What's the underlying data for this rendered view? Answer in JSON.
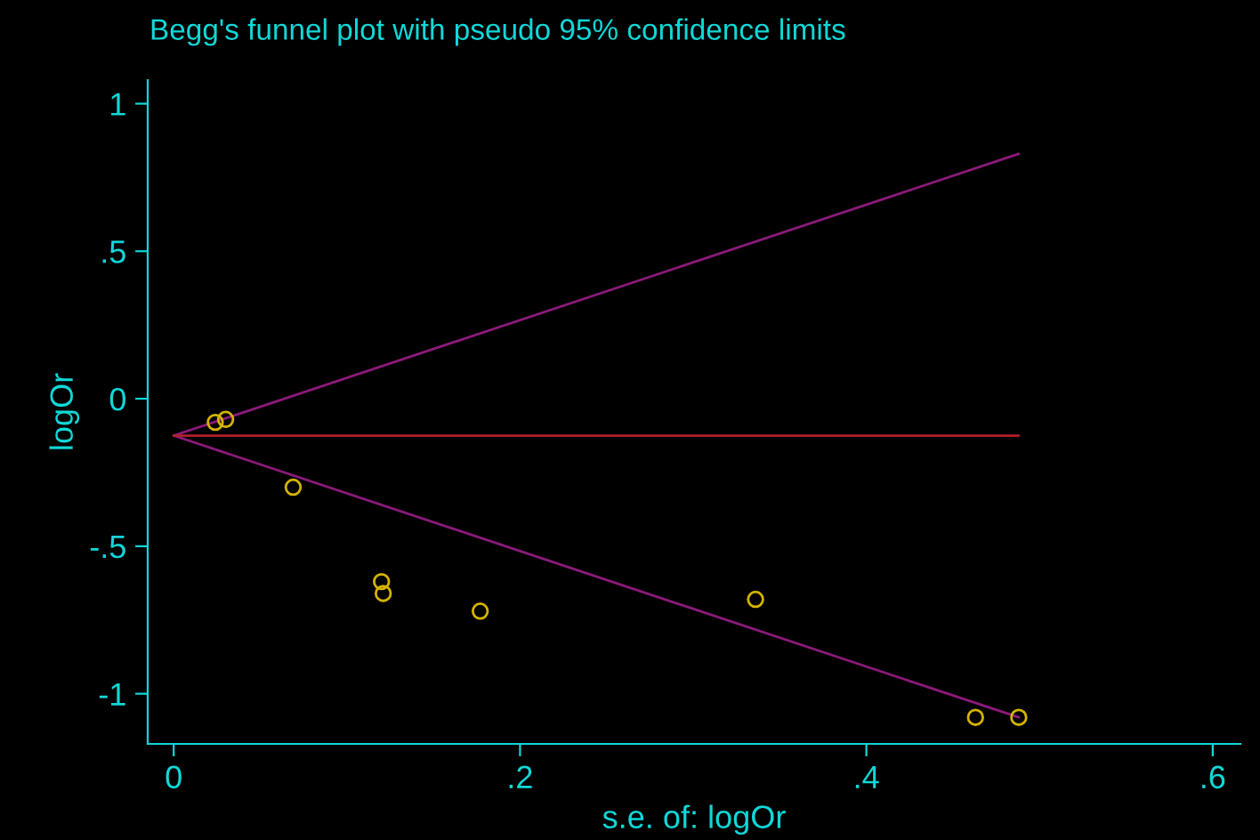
{
  "chart_data": {
    "type": "scatter",
    "title": "Begg's funnel plot with pseudo 95% confidence limits",
    "xlabel": "s.e. of: logOr",
    "ylabel": "logOr",
    "xlim": [
      -0.015,
      0.616
    ],
    "ylim": [
      -1.17,
      1.08
    ],
    "xticks": [
      {
        "value": 0,
        "label": "0"
      },
      {
        "value": 0.2,
        "label": ".2"
      },
      {
        "value": 0.4,
        "label": ".4"
      },
      {
        "value": 0.6,
        "label": ".6"
      }
    ],
    "yticks": [
      {
        "value": -1,
        "label": "-1"
      },
      {
        "value": -0.5,
        "label": "-.5"
      },
      {
        "value": 0,
        "label": "0"
      },
      {
        "value": 0.5,
        "label": ".5"
      },
      {
        "value": 1,
        "label": "1"
      }
    ],
    "grid": false,
    "legend": false,
    "marker": "circle",
    "series": [
      {
        "type": "line",
        "color": "#8b1a7a",
        "x": [
          0,
          0.488
        ],
        "values": [
          -0.125,
          0.83
        ],
        "marker": "none"
      },
      {
        "type": "line",
        "color": "#8b1a7a",
        "x": [
          0,
          0.488
        ],
        "values": [
          -0.125,
          -1.08
        ],
        "marker": "none"
      },
      {
        "type": "line",
        "color": "#b0202a",
        "x": [
          0,
          0.488
        ],
        "values": [
          -0.125,
          -0.125
        ],
        "marker": "none"
      },
      {
        "color": "#d4b400",
        "x": [
          0.024,
          0.03,
          0.069,
          0.12,
          0.121,
          0.177,
          0.336,
          0.463,
          0.488
        ],
        "values": [
          -0.08,
          -0.07,
          -0.3,
          -0.62,
          -0.66,
          -0.72,
          -0.68,
          -1.08,
          -1.08
        ]
      }
    ]
  }
}
